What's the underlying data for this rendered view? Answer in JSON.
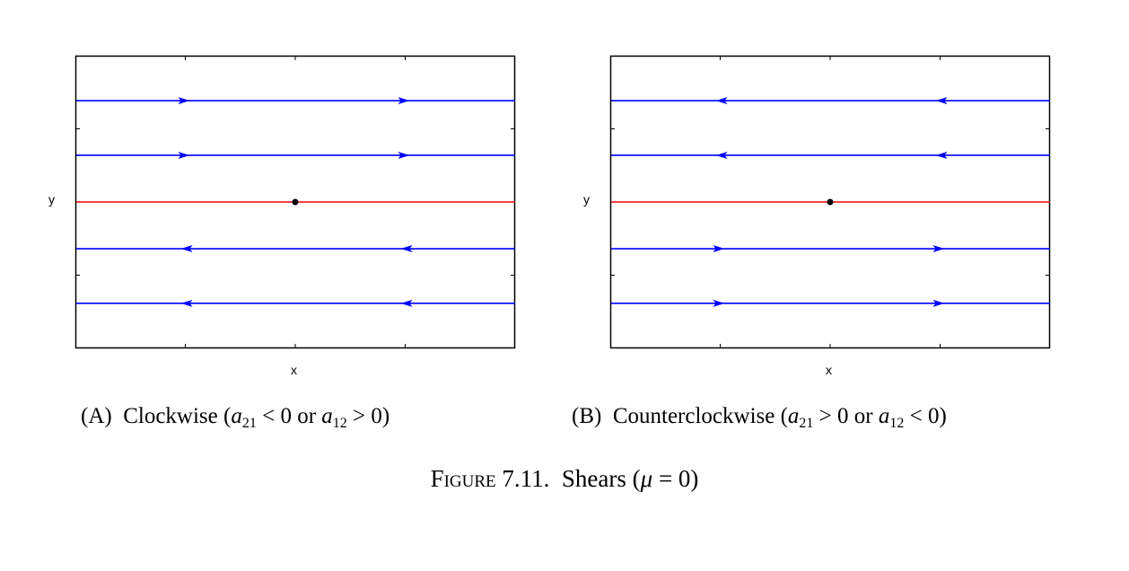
{
  "chart_data": [
    {
      "type": "line",
      "xlabel": "x",
      "ylabel": "y",
      "xlim": [
        -2,
        2
      ],
      "ylim": [
        -2.6,
        2.6
      ],
      "grid": false,
      "equilibrium": {
        "x": 0,
        "y": 0
      },
      "lines": [
        {
          "y": 1.8,
          "direction": "right",
          "color": "#0000ff"
        },
        {
          "y": 0.83,
          "direction": "right",
          "color": "#0000ff"
        },
        {
          "y": 0,
          "direction": "none",
          "color": "#ff0000"
        },
        {
          "y": -0.83,
          "direction": "left",
          "color": "#0000ff"
        },
        {
          "y": -1.8,
          "direction": "left",
          "color": "#0000ff"
        }
      ],
      "caption": {
        "label": "(A)",
        "title": "Clockwise",
        "condition1": {
          "var": "a",
          "sub": "21",
          "rel": "< 0"
        },
        "join": "or",
        "condition2": {
          "var": "a",
          "sub": "12",
          "rel": "> 0"
        }
      }
    },
    {
      "type": "line",
      "xlabel": "x",
      "ylabel": "y",
      "xlim": [
        -2,
        2
      ],
      "ylim": [
        -2.6,
        2.6
      ],
      "grid": false,
      "equilibrium": {
        "x": 0,
        "y": 0
      },
      "lines": [
        {
          "y": 1.8,
          "direction": "left",
          "color": "#0000ff"
        },
        {
          "y": 0.83,
          "direction": "left",
          "color": "#0000ff"
        },
        {
          "y": 0,
          "direction": "none",
          "color": "#ff0000"
        },
        {
          "y": -0.83,
          "direction": "right",
          "color": "#0000ff"
        },
        {
          "y": -1.8,
          "direction": "right",
          "color": "#0000ff"
        }
      ],
      "caption": {
        "label": "(B)",
        "title": "Counterclockwise",
        "condition1": {
          "var": "a",
          "sub": "21",
          "rel": "> 0"
        },
        "join": "or",
        "condition2": {
          "var": "a",
          "sub": "12",
          "rel": "< 0"
        }
      }
    }
  ],
  "figure": {
    "label": "Figure 7.11.",
    "title": "Shears",
    "param": "μ",
    "param_value": "= 0"
  }
}
